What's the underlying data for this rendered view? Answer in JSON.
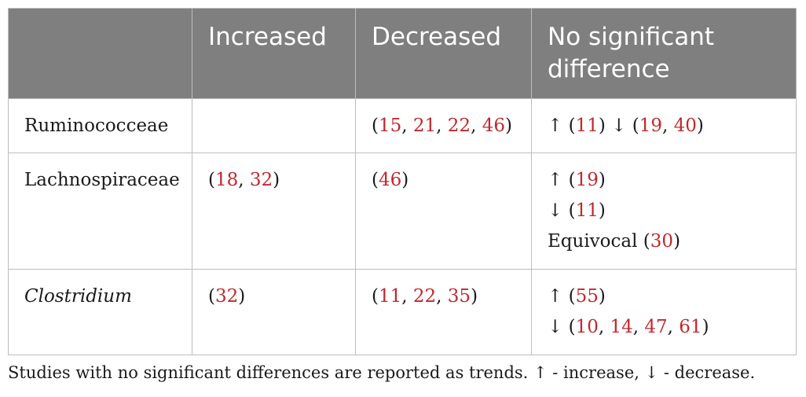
{
  "header": [
    "",
    "Increased",
    "Decreased",
    "No significant difference"
  ],
  "rows": [
    {
      "label": "Ruminococceae",
      "increased": [],
      "decreased": [
        {
          "prefix": "",
          "refs": [
            "15",
            "21",
            "22",
            "46"
          ]
        }
      ],
      "no_diff": [
        {
          "prefix": "↑",
          "refs": [
            "11"
          ],
          "then_prefix": "↓",
          "then_refs": [
            "19",
            "40"
          ]
        }
      ]
    },
    {
      "label": "Lachnospiraceae",
      "increased": [
        {
          "prefix": "",
          "refs": [
            "18",
            "32"
          ]
        }
      ],
      "decreased": [
        {
          "prefix": "",
          "refs": [
            "46"
          ]
        }
      ],
      "no_diff": [
        {
          "prefix": "↑",
          "refs": [
            "19"
          ]
        },
        {
          "prefix": "↓",
          "refs": [
            "11"
          ]
        },
        {
          "prefix": "Equivocal",
          "refs": [
            "30"
          ]
        }
      ]
    },
    {
      "label": "Clostridium",
      "label_italic": true,
      "increased": [
        {
          "prefix": "",
          "refs": [
            "32"
          ]
        }
      ],
      "decreased": [
        {
          "prefix": "",
          "refs": [
            "11",
            "22",
            "35"
          ]
        }
      ],
      "no_diff": [
        {
          "prefix": "↑",
          "refs": [
            "55"
          ]
        },
        {
          "prefix": "↓",
          "refs": [
            "10",
            "14",
            "47",
            "61"
          ]
        }
      ]
    }
  ],
  "footnote": "Studies with no significant differences are reported as trends. ↑ - increase, ↓ - decrease.",
  "colors": {
    "header_bg": "#7f7f7f",
    "reference": "#c0282d",
    "border": "#bdbdbd"
  }
}
